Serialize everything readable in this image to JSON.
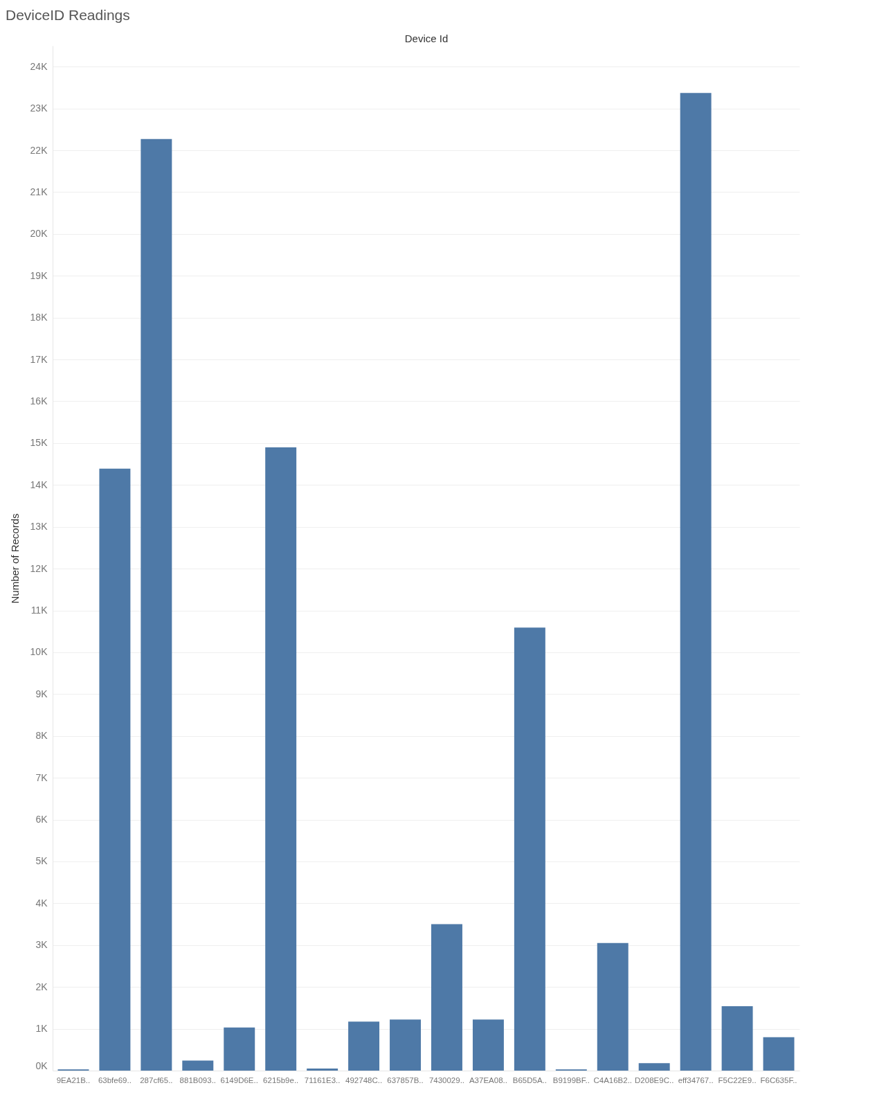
{
  "chart_data": {
    "type": "bar",
    "title": "DeviceID Readings",
    "xlabel": "Device Id",
    "ylabel": "Number of Records",
    "categories": [
      "9EA21B..",
      "63bfe69..",
      "287cf65..",
      "881B093..",
      "6149D6E..",
      "6215b9e..",
      "71161E3..",
      "492748C..",
      "637857B..",
      "7430029..",
      "A37EA08..",
      "B65D5A..",
      "B9199BF..",
      "C4A16B2..",
      "D208E9C..",
      "eff34767..",
      "F5C22E9..",
      "F6C635F.."
    ],
    "values": [
      30,
      14390,
      22270,
      240,
      1030,
      14900,
      50,
      1170,
      1220,
      3500,
      1220,
      10590,
      30,
      3050,
      180,
      23370,
      1540,
      800
    ],
    "color": "#4e79a7",
    "ylim": [
      0,
      24500
    ],
    "yticks": [
      {
        "value": 0,
        "label": "0K"
      },
      {
        "value": 1000,
        "label": "1K"
      },
      {
        "value": 2000,
        "label": "2K"
      },
      {
        "value": 3000,
        "label": "3K"
      },
      {
        "value": 4000,
        "label": "4K"
      },
      {
        "value": 5000,
        "label": "5K"
      },
      {
        "value": 6000,
        "label": "6K"
      },
      {
        "value": 7000,
        "label": "7K"
      },
      {
        "value": 8000,
        "label": "8K"
      },
      {
        "value": 9000,
        "label": "9K"
      },
      {
        "value": 10000,
        "label": "10K"
      },
      {
        "value": 11000,
        "label": "11K"
      },
      {
        "value": 12000,
        "label": "12K"
      },
      {
        "value": 13000,
        "label": "13K"
      },
      {
        "value": 14000,
        "label": "14K"
      },
      {
        "value": 15000,
        "label": "15K"
      },
      {
        "value": 16000,
        "label": "16K"
      },
      {
        "value": 17000,
        "label": "17K"
      },
      {
        "value": 18000,
        "label": "18K"
      },
      {
        "value": 19000,
        "label": "19K"
      },
      {
        "value": 20000,
        "label": "20K"
      },
      {
        "value": 21000,
        "label": "21K"
      },
      {
        "value": 22000,
        "label": "22K"
      },
      {
        "value": 23000,
        "label": "23K"
      },
      {
        "value": 24000,
        "label": "24K"
      }
    ],
    "grid": "y"
  }
}
